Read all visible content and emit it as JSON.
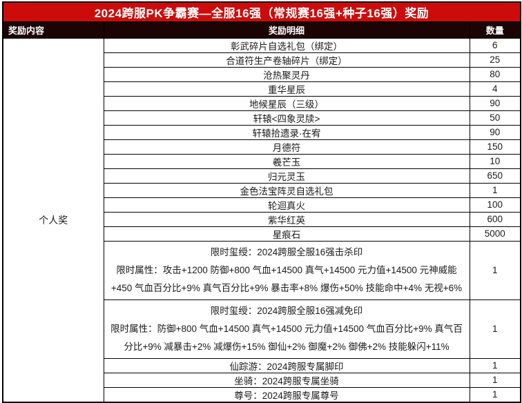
{
  "banner": {
    "title": "2024跨服PK争霸赛—全服16强（常规赛16强+种子16强）奖励"
  },
  "columns": {
    "content": "奖励内容",
    "detail": "奖励明细",
    "qty": "数量"
  },
  "category": {
    "label": "个人奖"
  },
  "rows": [
    {
      "detail": "彰武碎片自选礼包（绑定）",
      "qty": "6"
    },
    {
      "detail": "合道符生产卷轴碎片（绑定）",
      "qty": "25"
    },
    {
      "detail": "沧热聚灵丹",
      "qty": "80"
    },
    {
      "detail": "重华星辰",
      "qty": "4"
    },
    {
      "detail": "地候星辰（三级）",
      "qty": "90"
    },
    {
      "detail": "轩辕<四象灵牍>",
      "qty": "50"
    },
    {
      "detail": "轩辕拾遗录·在宥",
      "qty": "90"
    },
    {
      "detail": "月德符",
      "qty": "150"
    },
    {
      "detail": "羲芒玉",
      "qty": "10"
    },
    {
      "detail": "归元灵玉",
      "qty": "650"
    },
    {
      "detail": "金色法宝阵灵自选礼包",
      "qty": "1"
    },
    {
      "detail": "轮迴真火",
      "qty": "100"
    },
    {
      "detail": "紫华红英",
      "qty": "600"
    },
    {
      "detail": "星痕石",
      "qty": "5000"
    },
    {
      "line1": "限时玺绶：2024跨服全服16强击杀印",
      "line2": "限时属性：攻击+1200 防御+800 气血+14500 真气+14500 元力值+14500 元神威能+450 气血百分比+9% 真气百分比+9% 暴击率+8% 爆伤+50% 技能命中+4% 无视+6%",
      "qty": "1"
    },
    {
      "line1": "限时玺绶：2024跨服全服16强减免印",
      "line2": "限时属性：防御+800 气血+14500 真气+14500 元力值+14500 气血百分比+9% 真气百分比+9% 减暴击+2% 减爆伤+15% 御仙+2% 御魔+2% 御佛+2% 技能躲闪+11%",
      "qty": "1"
    },
    {
      "detail": "仙踪游：2024跨服专属脚印",
      "qty": "1"
    },
    {
      "detail": "坐骑：2024跨服专属坐骑",
      "qty": "1"
    },
    {
      "detail": "尊号：2024跨服专属尊号",
      "qty": "1"
    }
  ],
  "colors": {
    "banner_bg": "#ce0b0b",
    "banner_text": "#ffffff",
    "header_bg": "#1d0404",
    "header_text": "#ffffff",
    "border": "#000000",
    "text": "#1a1a1a"
  }
}
